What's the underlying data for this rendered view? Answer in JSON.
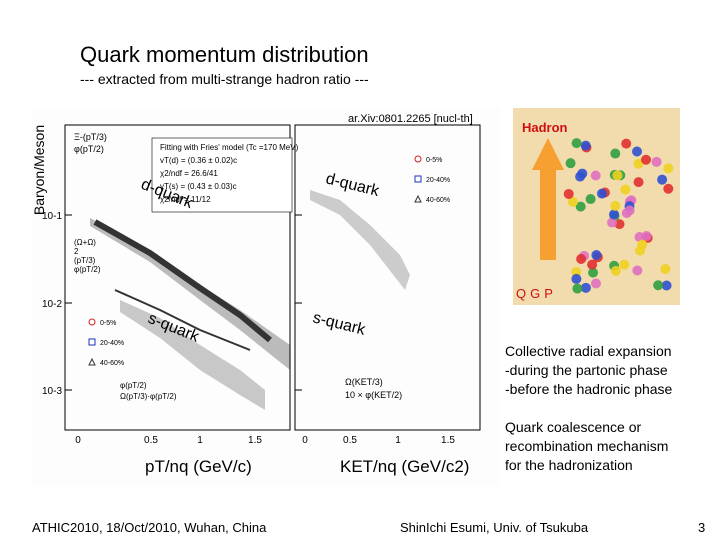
{
  "slide": {
    "title": "Quark momentum distribution",
    "subtitle": "--- extracted from multi-strange hadron ratio ---",
    "reference": "ar.Xiv:0801.2265 [nucl-th]",
    "figure": {
      "y_axis_label": "Baryon/Meson",
      "left_x_label": "pT/nq (GeV/c)",
      "right_x_label": "KET/nq (GeV/c2)",
      "y_ticks": [
        "10-1",
        "10-2",
        "10-3"
      ],
      "left_x_ticks": [
        "0",
        "0.5",
        "1",
        "1.5"
      ],
      "right_x_ticks": [
        "0",
        "0.5",
        "1",
        "1.5"
      ],
      "fit_box": [
        "Fitting with Fries' model (Tc =170 MeV)",
        "vT(d) = (0.36 ± 0.02)c",
        "χ2/ndf = 26.6/41",
        "vT(s) = (0.43 ± 0.03)c",
        "χ2/ndf = 11/12"
      ],
      "left_ratio_top": [
        "Ξ-(pT/3)",
        "φ(pT/2)"
      ],
      "left_ratio_mid": [
        "(Ω+Ω)",
        "2",
        "(pT/3)",
        "φ(pT/2)"
      ],
      "left_ratio_bottom": [
        "φ(pT/2)",
        "Ω(pT/3)·φ(pT/2)"
      ],
      "right_ratio_bottom": [
        "Ω(KET/3)",
        "10 × φ(KET/2)"
      ],
      "left_legend": [
        "0-5%",
        "20-40%",
        "40-60%"
      ],
      "right_legend": [
        "0-5%",
        "20-40%",
        "40-60%"
      ],
      "annotations": [
        "d-quark",
        "d-quark",
        "s-quark",
        "s-quark"
      ]
    },
    "illustration": {
      "top_label": "Hadron",
      "bottom_label": "QGP"
    },
    "bullets": [
      [
        "Collective radial expansion",
        "-during the partonic phase",
        "-before the hadronic phase"
      ],
      [
        "Quark coalescence or",
        "recombination mechanism",
        "for the hadronization"
      ]
    ],
    "footer": {
      "left": "ATHIC2010, 18/Oct/2010, Wuhan, China",
      "center": "ShinIchi Esumi, Univ. of Tsukuba",
      "page": "3"
    }
  }
}
